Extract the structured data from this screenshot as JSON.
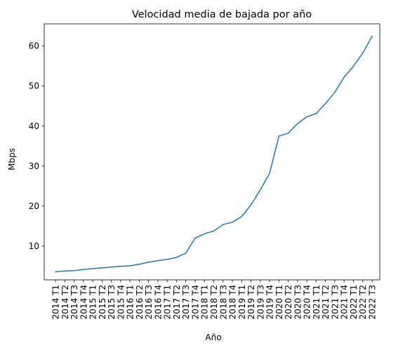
{
  "chart_data": {
    "type": "line",
    "title": "Velocidad media de bajada por año",
    "xlabel": "Año",
    "ylabel": "Mbps",
    "ylim": [
      1.6,
      65.5
    ],
    "yticks": [
      10,
      20,
      30,
      40,
      50,
      60
    ],
    "grid": false,
    "line_color": "#1f77b4",
    "categories": [
      "2014 T1",
      "2014 T2",
      "2014 T3",
      "2014 T4",
      "2015 T1",
      "2015 T2",
      "2015 T3",
      "2015 T4",
      "2016 T1",
      "2016 T2",
      "2016 T3",
      "2016 T4",
      "2017 T1",
      "2017 T2",
      "2017 T3",
      "2017 T4",
      "2018 T1",
      "2018 T2",
      "2018 T3",
      "2018 T4",
      "2019 T1",
      "2019 T2",
      "2019 T3",
      "2019 T4",
      "2020 T1",
      "2020 T2",
      "2020 T3",
      "2020 T4",
      "2021 T1",
      "2021 T2",
      "2021 T3",
      "2021 T4",
      "2022 T1",
      "2022 T2",
      "2022 T3"
    ],
    "values": [
      3.6,
      3.8,
      3.9,
      4.2,
      4.4,
      4.6,
      4.8,
      5.0,
      5.1,
      5.5,
      6.0,
      6.4,
      6.7,
      7.2,
      8.3,
      12.0,
      13.1,
      13.8,
      15.4,
      16.0,
      17.4,
      20.3,
      24.1,
      28.2,
      37.5,
      38.2,
      40.6,
      42.3,
      43.1,
      45.6,
      48.4,
      52.2,
      54.9,
      58.2,
      62.4
    ]
  }
}
